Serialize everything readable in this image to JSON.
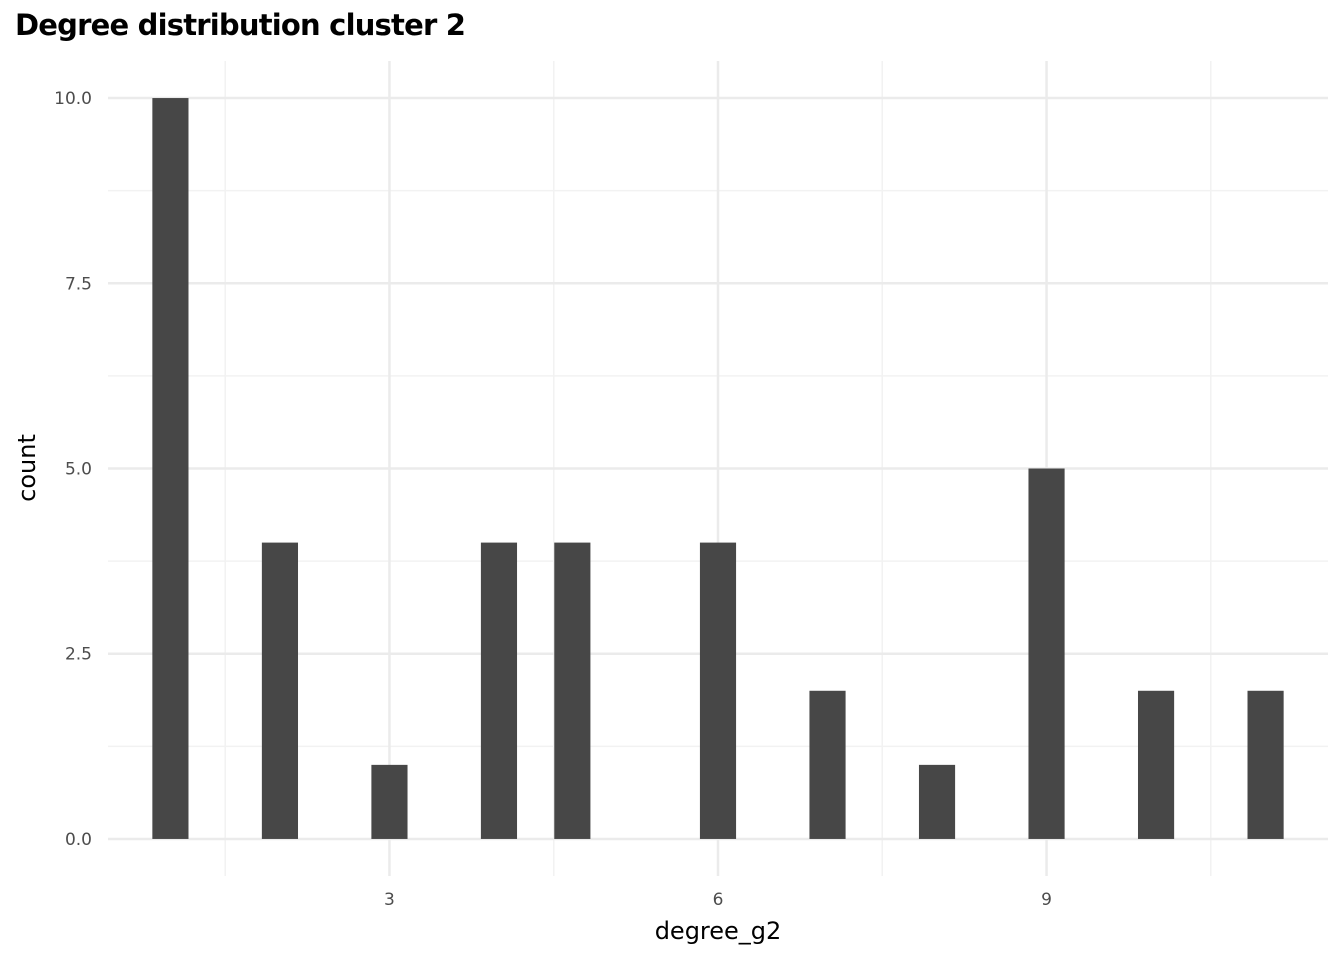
{
  "chart_data": {
    "type": "bar",
    "title": "Degree distribution cluster 2",
    "xlabel": "degree_g2",
    "ylabel": "count",
    "x": [
      1,
      2,
      3,
      4,
      4.67,
      6,
      7,
      8,
      9,
      10,
      11
    ],
    "values": [
      10,
      4,
      1,
      4,
      4,
      4,
      2,
      1,
      5,
      2,
      2
    ],
    "xlim": [
      0.43,
      11.57
    ],
    "ylim": [
      -0.5,
      10.5
    ],
    "x_ticks": [
      3,
      6,
      9
    ],
    "x_tick_labels": [
      "3",
      "6",
      "9"
    ],
    "y_ticks": [
      0,
      2.5,
      5,
      7.5,
      10
    ],
    "y_tick_labels": [
      "0.0",
      "2.5",
      "5.0",
      "7.5",
      "10.0"
    ],
    "grid": true,
    "legend": "none",
    "colors": {
      "bar": "#474747",
      "grid_major": "#ebebeb",
      "grid_minor": "#f2f2f2"
    }
  }
}
